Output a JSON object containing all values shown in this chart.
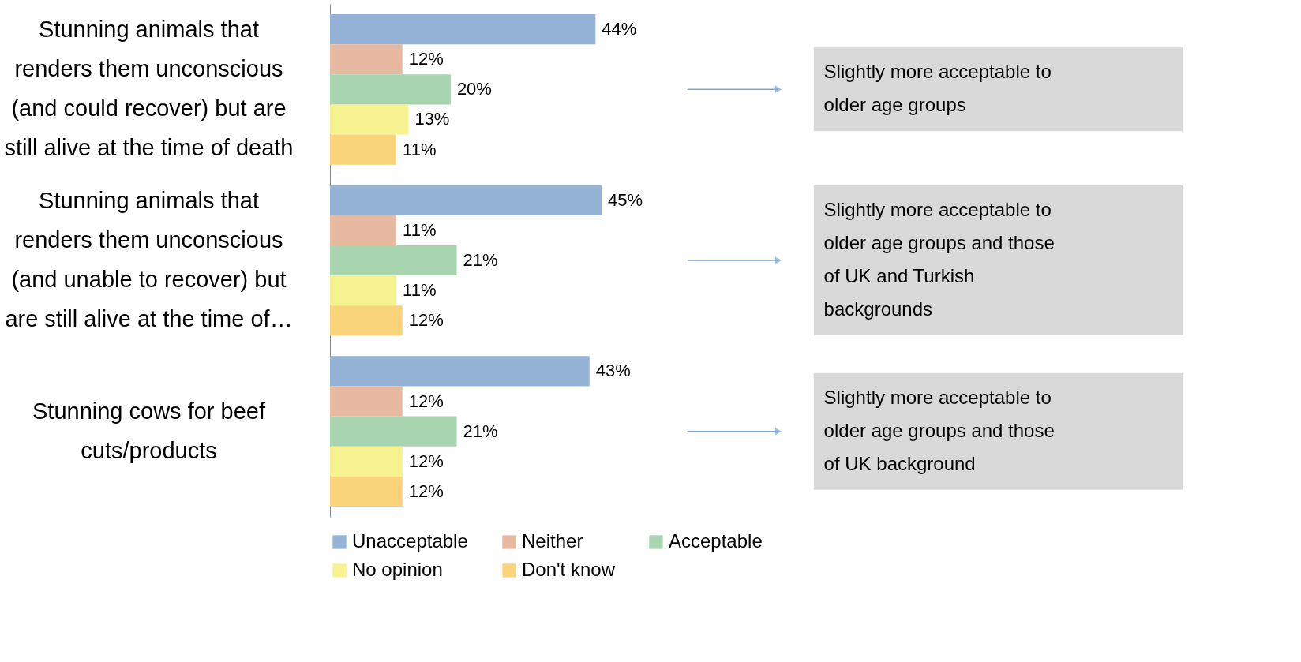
{
  "chart_data": {
    "type": "bar",
    "orientation": "horizontal",
    "categories": [
      "Stunning animals that\nrenders them unconscious\n(and could recover) but are\nstill alive at the time of death",
      "Stunning animals that\nrenders them unconscious\n(and unable to recover) but\nare still alive at the time of…",
      "Stunning cows for beef\ncuts/products"
    ],
    "series": [
      {
        "name": "Unacceptable",
        "color": "#95b3d7",
        "values": [
          44,
          45,
          43
        ],
        "value_labels": [
          "44%",
          "45%",
          "43%"
        ]
      },
      {
        "name": "Neither",
        "color": "#e6b9a0",
        "values": [
          12,
          11,
          12
        ],
        "value_labels": [
          "12%",
          "11%",
          "12%"
        ]
      },
      {
        "name": "Acceptable",
        "color": "#a9d4b0",
        "values": [
          20,
          21,
          21
        ],
        "value_labels": [
          "20%",
          "21%",
          "21%"
        ]
      },
      {
        "name": "No opinion",
        "color": "#f5f28f",
        "values": [
          13,
          11,
          12
        ],
        "value_labels": [
          "13%",
          "11%",
          "12%"
        ]
      },
      {
        "name": "Don't know",
        "color": "#fad47a",
        "values": [
          11,
          12,
          12
        ],
        "value_labels": [
          "11%",
          "12%",
          "12%"
        ]
      }
    ],
    "annotations": [
      "Slightly more acceptable to\nolder age groups",
      "Slightly more acceptable to\nolder age groups and those\nof UK and Turkish\nbackgrounds",
      "Slightly more acceptable to\nolder age groups and those\nof UK background"
    ],
    "legend": "bottom",
    "tick_labels": "y"
  }
}
